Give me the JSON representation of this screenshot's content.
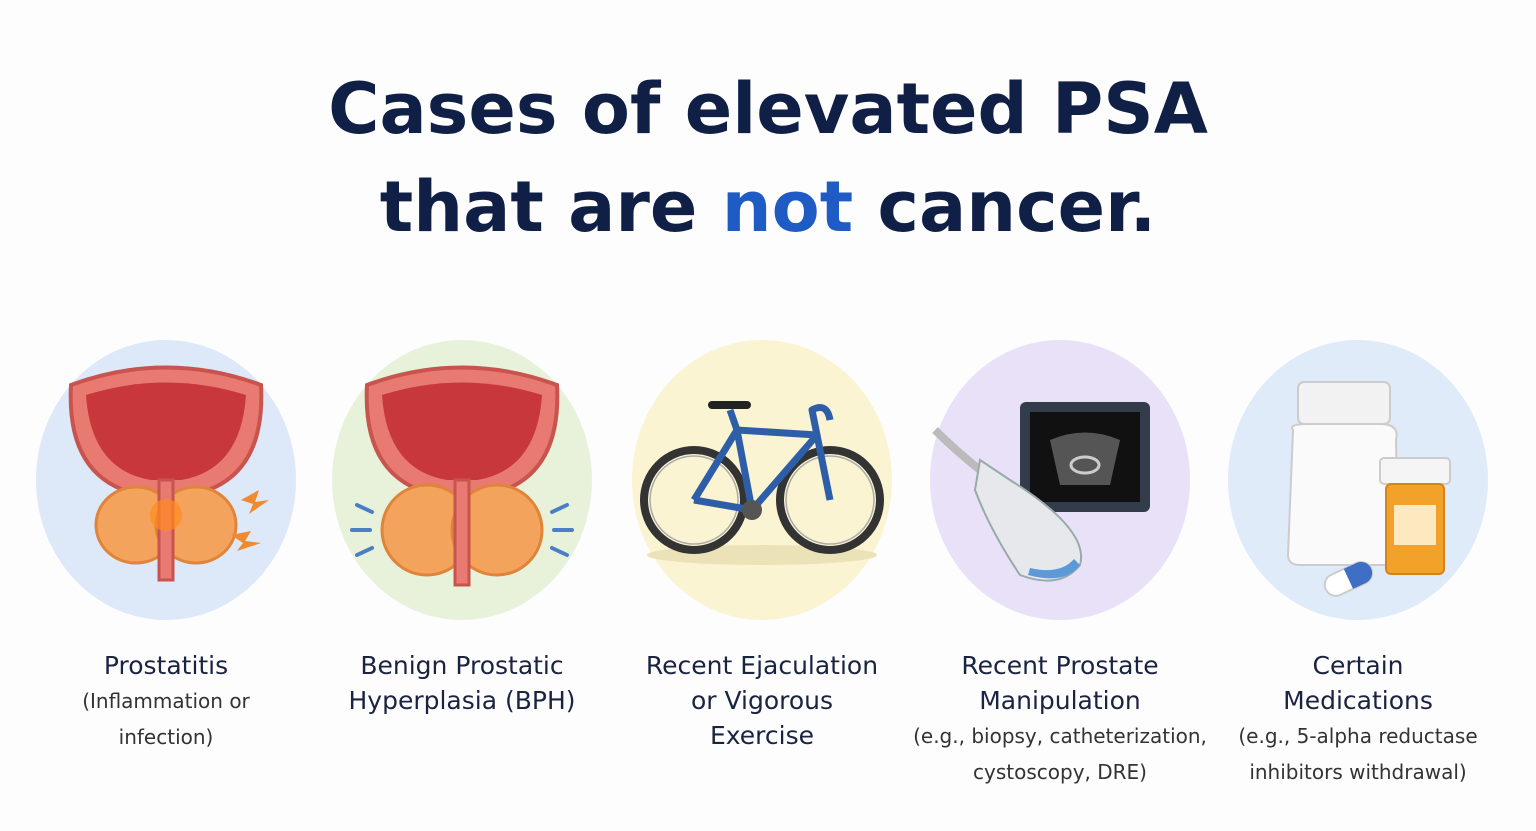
{
  "title": {
    "line1": "Cases of elevated PSA",
    "line2_start": "that are",
    "highlight": "not",
    "line2_end": "cancer."
  },
  "items": [
    {
      "heading": [
        "Prostatitis"
      ],
      "description": [
        "(Inflammation or",
        "infection)"
      ]
    },
    {
      "heading": [
        "Benign Prostatic",
        "Hyperplasia (BPH)"
      ],
      "description": []
    },
    {
      "heading": [
        "Recent Ejaculation",
        "or Vigorous",
        "Exercise"
      ],
      "description": []
    },
    {
      "heading": [
        "Recent Prostate",
        "Manipulation"
      ],
      "description": [
        "(e.g., biopsy, catheterization,",
        "cystoscopy, DRE)"
      ]
    },
    {
      "heading": [
        "Certain",
        "Medications"
      ],
      "description": [
        "(e.g., 5-alpha reductase",
        "inhibitors withdrawal)"
      ]
    }
  ]
}
